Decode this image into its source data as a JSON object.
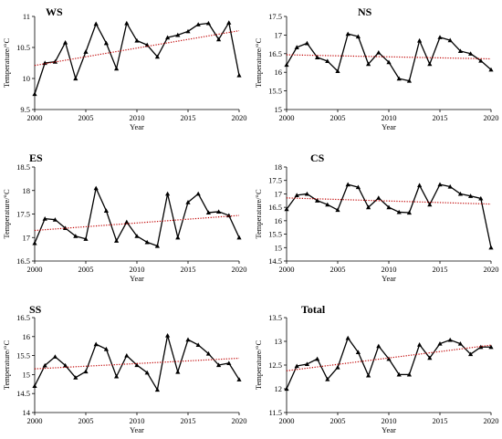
{
  "chart_data": [
    {
      "type": "line",
      "title": "WS",
      "xlabel": "Year",
      "ylabel": "Temperature/°C",
      "xlim": [
        2000,
        2020
      ],
      "ylim": [
        9.5,
        11
      ],
      "xticks": [
        2000,
        2005,
        2010,
        2015,
        2020
      ],
      "yticks": [
        9.5,
        10,
        10.5,
        11
      ],
      "ytick_labels": [
        "9.5",
        "10",
        "10.5",
        "11"
      ],
      "x": [
        2000,
        2001,
        2002,
        2003,
        2004,
        2005,
        2006,
        2007,
        2008,
        2009,
        2010,
        2011,
        2012,
        2013,
        2014,
        2015,
        2016,
        2017,
        2018,
        2019,
        2020
      ],
      "series": [
        {
          "values": [
            9.75,
            10.25,
            10.27,
            10.58,
            10.0,
            10.43,
            10.88,
            10.57,
            10.16,
            10.89,
            10.61,
            10.54,
            10.35,
            10.66,
            10.7,
            10.76,
            10.87,
            10.89,
            10.63,
            10.9,
            10.05
          ],
          "marker": "triangle",
          "color": "#000000"
        }
      ],
      "trend": {
        "start": [
          2000,
          10.21
        ],
        "end": [
          2020,
          10.77
        ],
        "color": "#c00000",
        "style": "dotted"
      },
      "grid": false,
      "legend": "none"
    },
    {
      "type": "line",
      "title": "NS",
      "xlabel": "Year",
      "ylabel": "Temperature/°C",
      "xlim": [
        2000,
        2020
      ],
      "ylim": [
        15,
        17.5
      ],
      "xticks": [
        2000,
        2005,
        2010,
        2015,
        2020
      ],
      "yticks": [
        15,
        15.5,
        16,
        16.5,
        17,
        17.5
      ],
      "ytick_labels": [
        "15",
        "15.5",
        "16",
        "16.5",
        "17",
        "17.5"
      ],
      "x": [
        2000,
        2001,
        2002,
        2003,
        2004,
        2005,
        2006,
        2007,
        2008,
        2009,
        2010,
        2011,
        2012,
        2013,
        2014,
        2015,
        2016,
        2017,
        2018,
        2019,
        2020
      ],
      "series": [
        {
          "values": [
            16.2,
            16.67,
            16.78,
            16.4,
            16.3,
            16.03,
            17.03,
            16.96,
            16.22,
            16.53,
            16.27,
            15.83,
            15.77,
            16.85,
            16.22,
            16.94,
            16.86,
            16.57,
            16.5,
            16.31,
            16.07
          ],
          "marker": "triangle",
          "color": "#000000"
        }
      ],
      "trend": {
        "start": [
          2000,
          16.47
        ],
        "end": [
          2020,
          16.36
        ],
        "color": "#c00000",
        "style": "dotted"
      },
      "grid": false,
      "legend": "none"
    },
    {
      "type": "line",
      "title": "ES",
      "xlabel": "Year",
      "ylabel": "Temperature/°C",
      "xlim": [
        2000,
        2020
      ],
      "ylim": [
        16.5,
        18.5
      ],
      "xticks": [
        2000,
        2005,
        2010,
        2015,
        2020
      ],
      "yticks": [
        16.5,
        17,
        17.5,
        18,
        18.5
      ],
      "ytick_labels": [
        "16.5",
        "17",
        "17.5",
        "18",
        "18.5"
      ],
      "x": [
        2000,
        2001,
        2002,
        2003,
        2004,
        2005,
        2006,
        2007,
        2008,
        2009,
        2010,
        2011,
        2012,
        2013,
        2014,
        2015,
        2016,
        2017,
        2018,
        2019,
        2020
      ],
      "series": [
        {
          "values": [
            16.88,
            17.4,
            17.38,
            17.2,
            17.03,
            16.97,
            18.05,
            17.57,
            16.93,
            17.33,
            17.03,
            16.9,
            16.82,
            17.93,
            17.0,
            17.75,
            17.93,
            17.53,
            17.55,
            17.47,
            17.0
          ],
          "marker": "triangle",
          "color": "#000000"
        }
      ],
      "trend": {
        "start": [
          2000,
          17.15
        ],
        "end": [
          2020,
          17.47
        ],
        "color": "#c00000",
        "style": "dotted"
      },
      "grid": false,
      "legend": "none"
    },
    {
      "type": "line",
      "title": "CS",
      "xlabel": "Year",
      "ylabel": "Temperature/°C",
      "xlim": [
        2000,
        2020
      ],
      "ylim": [
        14.5,
        18
      ],
      "xticks": [
        2000,
        2005,
        2010,
        2015,
        2020
      ],
      "yticks": [
        14.5,
        15,
        15.5,
        16,
        16.5,
        17,
        17.5,
        18
      ],
      "ytick_labels": [
        "14.5",
        "15",
        "15.5",
        "16",
        "16.5",
        "17",
        "17.5",
        "18"
      ],
      "x": [
        2000,
        2001,
        2002,
        2003,
        2004,
        2005,
        2006,
        2007,
        2008,
        2009,
        2010,
        2011,
        2012,
        2013,
        2014,
        2015,
        2016,
        2017,
        2018,
        2019,
        2020
      ],
      "series": [
        {
          "values": [
            16.43,
            16.95,
            17.0,
            16.75,
            16.6,
            16.4,
            17.35,
            17.25,
            16.5,
            16.85,
            16.5,
            16.32,
            16.3,
            17.32,
            16.6,
            17.35,
            17.27,
            17.0,
            16.92,
            16.83,
            15.0
          ],
          "marker": "triangle",
          "color": "#000000"
        }
      ],
      "trend": {
        "start": [
          2000,
          16.85
        ],
        "end": [
          2020,
          16.62
        ],
        "color": "#c00000",
        "style": "dotted"
      },
      "grid": false,
      "legend": "none"
    },
    {
      "type": "line",
      "title": "SS",
      "xlabel": "Year",
      "ylabel": "Temperature/°C",
      "xlim": [
        2000,
        2020
      ],
      "ylim": [
        14,
        16.5
      ],
      "xticks": [
        2000,
        2005,
        2010,
        2015,
        2020
      ],
      "yticks": [
        14,
        14.5,
        15,
        15.5,
        16,
        16.5
      ],
      "ytick_labels": [
        "14",
        "14.5",
        "15",
        "15.5",
        "16",
        "16.5"
      ],
      "x": [
        2000,
        2001,
        2002,
        2003,
        2004,
        2005,
        2006,
        2007,
        2008,
        2009,
        2010,
        2011,
        2012,
        2013,
        2014,
        2015,
        2016,
        2017,
        2018,
        2019,
        2020
      ],
      "series": [
        {
          "values": [
            14.7,
            15.24,
            15.47,
            15.24,
            14.92,
            15.08,
            15.8,
            15.67,
            14.95,
            15.5,
            15.25,
            15.05,
            14.6,
            16.03,
            15.07,
            15.92,
            15.78,
            15.55,
            15.25,
            15.3,
            14.87
          ],
          "marker": "triangle",
          "color": "#000000"
        }
      ],
      "trend": {
        "start": [
          2000,
          15.15
        ],
        "end": [
          2020,
          15.43
        ],
        "color": "#c00000",
        "style": "dotted"
      },
      "grid": false,
      "legend": "none"
    },
    {
      "type": "line",
      "title": "Total",
      "xlabel": "Year",
      "ylabel": "Temperature/°C",
      "xlim": [
        2000,
        2020
      ],
      "ylim": [
        11.5,
        13.5
      ],
      "xticks": [
        2000,
        2005,
        2010,
        2015,
        2020
      ],
      "yticks": [
        11.5,
        12,
        12.5,
        13,
        13.5
      ],
      "ytick_labels": [
        "11.5",
        "12",
        "12.5",
        "13",
        "13.5"
      ],
      "x": [
        2000,
        2001,
        2002,
        2003,
        2004,
        2005,
        2006,
        2007,
        2008,
        2009,
        2010,
        2011,
        2012,
        2013,
        2014,
        2015,
        2016,
        2017,
        2018,
        2019,
        2020
      ],
      "series": [
        {
          "values": [
            12.0,
            12.48,
            12.52,
            12.63,
            12.2,
            12.45,
            13.07,
            12.77,
            12.28,
            12.9,
            12.63,
            12.3,
            12.3,
            12.93,
            12.65,
            12.95,
            13.03,
            12.95,
            12.73,
            12.88,
            12.88
          ],
          "marker": "triangle",
          "color": "#000000"
        }
      ],
      "trend": {
        "start": [
          2000,
          12.38
        ],
        "end": [
          2020,
          12.92
        ],
        "color": "#c00000",
        "style": "dotted"
      },
      "grid": false,
      "legend": "none"
    }
  ]
}
